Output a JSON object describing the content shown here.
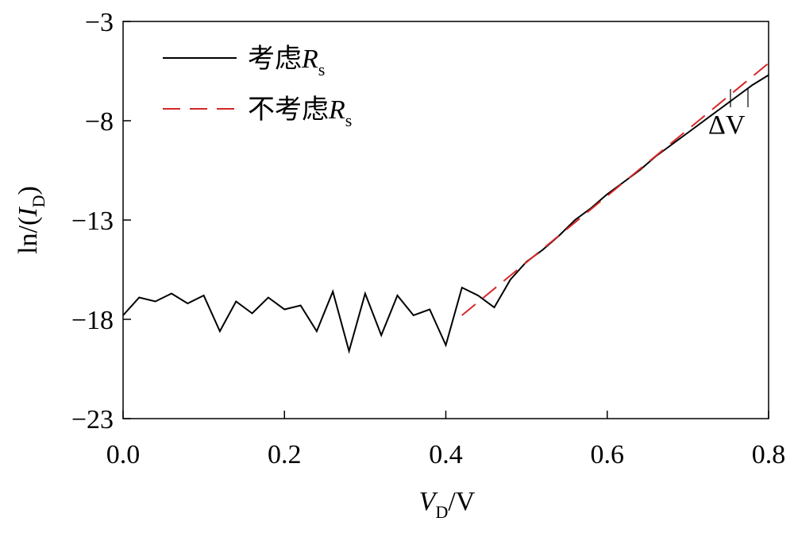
{
  "chart_data": {
    "type": "line",
    "xlabel_parts": [
      {
        "text": "V",
        "italic": true
      },
      {
        "text": "D",
        "sub": true
      },
      {
        "text": "/V"
      }
    ],
    "ylabel_parts": [
      {
        "text": "ln/("
      },
      {
        "text": "I",
        "italic": true
      },
      {
        "text": "D",
        "sub": true
      },
      {
        "text": ")"
      }
    ],
    "xlim": [
      0,
      0.8
    ],
    "ylim": [
      -23,
      -3
    ],
    "xticks": [
      {
        "value": 0,
        "label": "0.0"
      },
      0.2,
      0.4,
      0.6,
      0.8
    ],
    "yticks": [
      {
        "value": -3,
        "label": "−3"
      },
      {
        "value": -8,
        "label": "−8"
      },
      {
        "value": -13,
        "label": "−13"
      },
      {
        "value": -18,
        "label": "−18"
      },
      {
        "value": -23,
        "label": "−23"
      }
    ],
    "legend": "top-left",
    "annotations": [
      {
        "text": "ΔV"
      }
    ],
    "series": [
      {
        "name_parts": [
          {
            "text": "考虑"
          },
          {
            "text": "R",
            "italic": true
          },
          {
            "text": "s",
            "sub": true
          }
        ],
        "color": "#000000",
        "dash": false,
        "x": [
          0,
          0.02,
          0.04,
          0.06,
          0.08,
          0.1,
          0.12,
          0.14,
          0.16,
          0.18,
          0.2,
          0.22,
          0.24,
          0.26,
          0.28,
          0.3,
          0.32,
          0.34,
          0.36,
          0.38,
          0.4,
          0.42,
          0.44,
          0.46,
          0.48,
          0.5,
          0.52,
          0.54,
          0.56,
          0.58,
          0.6,
          0.62,
          0.64,
          0.66,
          0.68,
          0.7,
          0.72,
          0.74,
          0.76,
          0.78,
          0.8
        ],
        "values": [
          -17.8,
          -16.9,
          -17.1,
          -16.7,
          -17.2,
          -16.8,
          -18.6,
          -17.1,
          -17.7,
          -16.9,
          -17.5,
          -17.3,
          -18.6,
          -16.6,
          -19.6,
          -16.7,
          -18.8,
          -16.8,
          -17.8,
          -17.5,
          -19.3,
          -16.4,
          -16.8,
          -17.4,
          -16.0,
          -15.1,
          -14.5,
          -13.8,
          -13.0,
          -12.4,
          -11.7,
          -11.1,
          -10.5,
          -9.8,
          -9.2,
          -8.6,
          -8.0,
          -7.4,
          -6.8,
          -6.2,
          -5.7
        ]
      },
      {
        "name_parts": [
          {
            "text": "不考虑"
          },
          {
            "text": "R",
            "italic": true
          },
          {
            "text": "s",
            "sub": true
          }
        ],
        "color": "#d62728",
        "dash": true,
        "x": [
          0.42,
          0.8
        ],
        "values": [
          -17.8,
          -5.1
        ]
      }
    ]
  }
}
